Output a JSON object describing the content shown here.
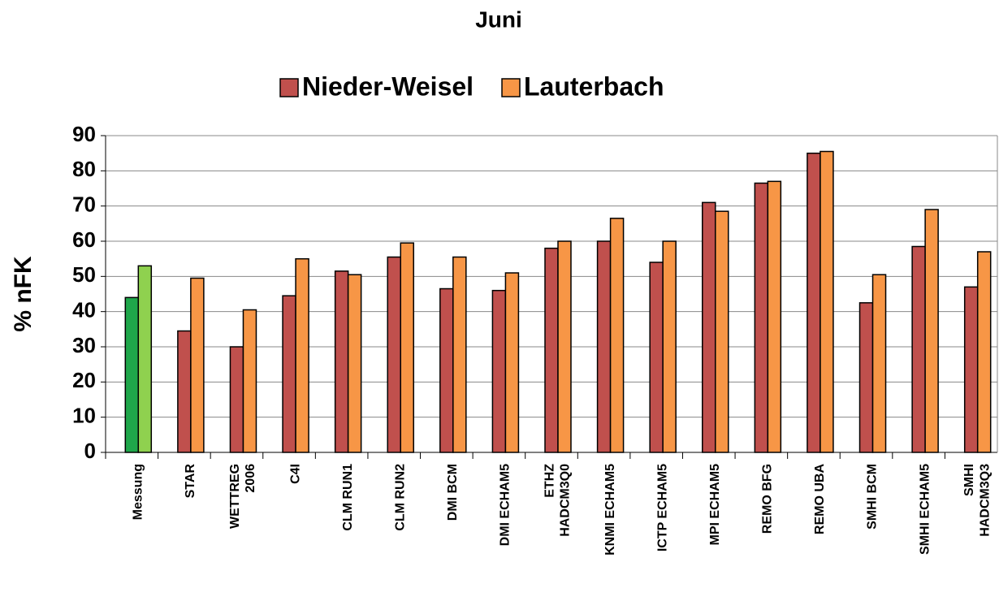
{
  "chart_data": {
    "type": "bar",
    "title": "Juni",
    "y_label": "% nFK",
    "categories": [
      "Messung",
      "STAR",
      "WETTREG\n2006",
      "C4I",
      "CLM RUN1",
      "CLM RUN2",
      "DMI BCM",
      "DMI ECHAM5",
      "ETHZ\nHADCM3Q0",
      "KNMI ECHAM5",
      "ICTP ECHAM5",
      "MPI ECHAM5",
      "REMO BFG",
      "REMO UBA",
      "SMHI BCM",
      "SMHI ECHAM5",
      "SMHI\nHADCM3Q3"
    ],
    "series": [
      {
        "name": "Nieder-Weisel",
        "color": "#c0504d",
        "first_color": "#1fa64a",
        "values": [
          44,
          34.5,
          30,
          44.5,
          51.5,
          55.5,
          46.5,
          46,
          58,
          60,
          54,
          71,
          76.5,
          85,
          42.5,
          58.5,
          47
        ]
      },
      {
        "name": "Lauterbach",
        "color": "#f79646",
        "first_color": "#8fd14f",
        "values": [
          53,
          49.5,
          40.5,
          55,
          50.5,
          59.5,
          55.5,
          51,
          60,
          66.5,
          60,
          68.5,
          77,
          85.5,
          50.5,
          69,
          57
        ]
      }
    ],
    "ylim": [
      0,
      90
    ],
    "yticks": [
      0,
      10,
      20,
      30,
      40,
      50,
      60,
      70,
      80,
      90
    ],
    "grid": true,
    "legend": "top"
  }
}
